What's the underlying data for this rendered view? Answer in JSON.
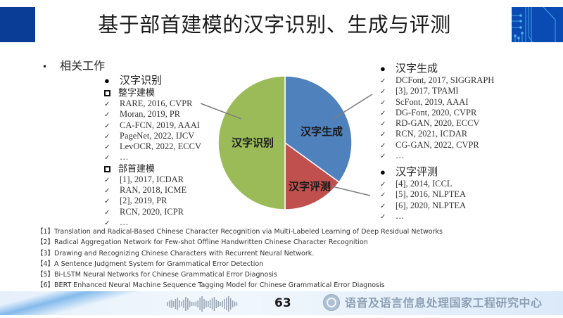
{
  "slide": {
    "title": "基于部首建模的汉字识别、生成与评测",
    "section_label": "相关工作",
    "section_bullet": "•",
    "page_number": "63",
    "organization": "语音及语言信息处理国家工程研究中心"
  },
  "recognition": {
    "heading": "汉字识别",
    "groups": [
      {
        "label": "整字建模",
        "items": [
          "RARE, 2016, CVPR",
          "Moran, 2019, PR",
          "CA-FCN, 2019, AAAI",
          "PageNet, 2022, IJCV",
          "LevOCR, 2022, ECCV",
          "…"
        ]
      },
      {
        "label": "部首建模",
        "items": [
          "[1], 2017, ICDAR",
          "RAN, 2018, ICME",
          "[2], 2019, PR",
          "RCN, 2020, ICPR",
          "…"
        ]
      }
    ]
  },
  "generation": {
    "heading": "汉字生成",
    "items": [
      "DCFont, 2017, SIGGRAPH",
      "[3], 2017, TPAMI",
      "ScFont, 2019, AAAI",
      "DG-Font, 2020, CVPR",
      "RD-GAN, 2020, ECCV",
      "RCN, 2021, ICDAR",
      "CG-GAN, 2022, CVPR",
      "…"
    ]
  },
  "evaluation": {
    "heading": "汉字评测",
    "items": [
      "[4], 2014, ICCL",
      "[5], 2016, NLPTEA",
      "[6], 2020, NLPTEA",
      "…"
    ]
  },
  "references": [
    "【1】Translation and Radical-Based Chinese Character Recognition via Multi-Labeled Learning of Deep Residual Networks",
    "【2】Radical Aggregation Network for Few-shot Offline Handwritten Chinese Character Recognition",
    "【3】Drawing and Recognizing Chinese Characters with Recurrent Neural Network.",
    "【4】A Sentence Judgment System for Grammatical Error Detection",
    "【5】Bi-LSTM Neural Networks for Chinese Grammatical Error Diagnosis",
    "【6】BERT Enhanced Neural Machine  Sequence Tagging Model for Chinese Grammatical Error Diagnosis"
  ],
  "colors": {
    "title_block": "#0a3d96",
    "pie_recognition": "#9bbb59",
    "pie_generation": "#4f81bd",
    "pie_evaluation": "#c0504d"
  },
  "chart_data": {
    "type": "pie",
    "title": "",
    "categories": [
      "汉字生成",
      "汉字评测",
      "汉字识别"
    ],
    "values": [
      35,
      15,
      50
    ],
    "colors": [
      "#4f81bd",
      "#c0504d",
      "#9bbb59"
    ],
    "start_angle": "12 o'clock, clockwise",
    "data_labels": [
      "汉字生成",
      "汉字评测",
      "汉字识别"
    ],
    "legend": "none (leader lines to side lists)"
  }
}
